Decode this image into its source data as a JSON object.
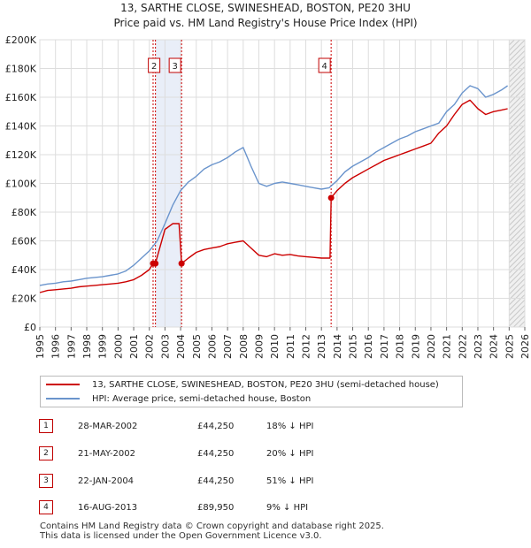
{
  "title_line1": "13, SARTHE CLOSE, SWINESHEAD, BOSTON, PE20 3HU",
  "title_line2": "Price paid vs. HM Land Registry's House Price Index (HPI)",
  "colors": {
    "price": "#cc0000",
    "hpi": "#6a94cc",
    "shade": "#e9eef8",
    "marker_border": "#c00000"
  },
  "chart_data": {
    "type": "line",
    "xlim": [
      1995,
      2026
    ],
    "ylim": [
      0,
      200000
    ],
    "y_ticks": [
      0,
      20000,
      40000,
      60000,
      80000,
      100000,
      120000,
      140000,
      160000,
      180000,
      200000
    ],
    "y_tick_labels": [
      "£0",
      "£20K",
      "£40K",
      "£60K",
      "£80K",
      "£100K",
      "£120K",
      "£140K",
      "£160K",
      "£180K",
      "£200K"
    ],
    "x_ticks": [
      "1995",
      "1996",
      "1997",
      "1998",
      "1999",
      "2000",
      "2001",
      "2002",
      "2003",
      "2004",
      "2005",
      "2006",
      "2007",
      "2008",
      "2009",
      "2010",
      "2011",
      "2012",
      "2013",
      "2014",
      "2015",
      "2016",
      "2017",
      "2018",
      "2019",
      "2020",
      "2021",
      "2022",
      "2023",
      "2024",
      "2025",
      "2026"
    ],
    "shaded_ranges": [
      [
        2002.39,
        2004.06
      ],
      [
        2025.0,
        2026.0
      ]
    ],
    "series": [
      {
        "name": "13, SARTHE CLOSE, SWINESHEAD, BOSTON, PE20 3HU (semi-detached house)",
        "x": [
          1995.0,
          1995.5,
          1996.0,
          1996.5,
          1997.0,
          1997.5,
          1998.0,
          1998.5,
          1999.0,
          1999.5,
          2000.0,
          2000.5,
          2001.0,
          2001.5,
          2002.0,
          2002.24,
          2002.39,
          2003.0,
          2003.5,
          2003.9,
          2004.06,
          2004.5,
          2005.0,
          2005.5,
          2006.0,
          2006.5,
          2007.0,
          2007.5,
          2008.0,
          2008.5,
          2009.0,
          2009.5,
          2010.0,
          2010.5,
          2011.0,
          2011.5,
          2012.0,
          2012.5,
          2013.0,
          2013.55,
          2013.62,
          2014.0,
          2014.5,
          2015.0,
          2015.5,
          2016.0,
          2016.5,
          2017.0,
          2017.5,
          2018.0,
          2018.5,
          2019.0,
          2019.5,
          2020.0,
          2020.5,
          2021.0,
          2021.5,
          2022.0,
          2022.5,
          2023.0,
          2023.5,
          2024.0,
          2024.5,
          2024.9
        ],
        "y": [
          24000,
          25500,
          26000,
          26500,
          27000,
          28000,
          28500,
          29000,
          29500,
          30000,
          30500,
          31500,
          33000,
          36000,
          40000,
          44250,
          44250,
          68000,
          72000,
          72000,
          44250,
          48000,
          52000,
          54000,
          55000,
          56000,
          58000,
          59000,
          60000,
          55000,
          50000,
          49000,
          51000,
          50000,
          50500,
          49500,
          49000,
          48500,
          48000,
          48000,
          89950,
          95000,
          100000,
          104000,
          107000,
          110000,
          113000,
          116000,
          118000,
          120000,
          122000,
          124000,
          126000,
          128000,
          135000,
          140000,
          148000,
          155000,
          158000,
          152000,
          148000,
          150000,
          151000,
          152000
        ]
      },
      {
        "name": "HPI: Average price, semi-detached house, Boston",
        "x": [
          1995.0,
          1995.5,
          1996.0,
          1996.5,
          1997.0,
          1997.5,
          1998.0,
          1998.5,
          1999.0,
          1999.5,
          2000.0,
          2000.5,
          2001.0,
          2001.5,
          2002.0,
          2002.5,
          2003.0,
          2003.5,
          2004.0,
          2004.5,
          2005.0,
          2005.5,
          2006.0,
          2006.5,
          2007.0,
          2007.5,
          2008.0,
          2008.5,
          2009.0,
          2009.5,
          2010.0,
          2010.5,
          2011.0,
          2011.5,
          2012.0,
          2012.5,
          2013.0,
          2013.5,
          2014.0,
          2014.5,
          2015.0,
          2015.5,
          2016.0,
          2016.5,
          2017.0,
          2017.5,
          2018.0,
          2018.5,
          2019.0,
          2019.5,
          2020.0,
          2020.5,
          2021.0,
          2021.5,
          2022.0,
          2022.5,
          2023.0,
          2023.5,
          2024.0,
          2024.5,
          2024.9
        ],
        "y": [
          29000,
          30000,
          30500,
          31500,
          32000,
          33000,
          34000,
          34500,
          35000,
          36000,
          37000,
          39000,
          43000,
          48000,
          53000,
          60000,
          72000,
          85000,
          95000,
          101000,
          105000,
          110000,
          113000,
          115000,
          118000,
          122000,
          125000,
          112000,
          100000,
          98000,
          100000,
          101000,
          100000,
          99000,
          98000,
          97000,
          96000,
          97000,
          102000,
          108000,
          112000,
          115000,
          118000,
          122000,
          125000,
          128000,
          131000,
          133000,
          136000,
          138000,
          140000,
          142000,
          150000,
          155000,
          163000,
          168000,
          166000,
          160000,
          162000,
          165000,
          168000
        ]
      }
    ],
    "sales": [
      {
        "label": "1",
        "x": 2002.24,
        "y": 44250
      },
      {
        "label": "2",
        "x": 2002.39,
        "y": 44250
      },
      {
        "label": "3",
        "x": 2004.06,
        "y": 44250
      },
      {
        "label": "4",
        "x": 2013.62,
        "y": 89950
      }
    ]
  },
  "legend": {
    "price_label": "13, SARTHE CLOSE, SWINESHEAD, BOSTON, PE20 3HU (semi-detached house)",
    "hpi_label": "HPI: Average price, semi-detached house, Boston"
  },
  "transactions": [
    {
      "num": "1",
      "date": "28-MAR-2002",
      "price": "£44,250",
      "hpi": "18% ↓ HPI"
    },
    {
      "num": "2",
      "date": "21-MAY-2002",
      "price": "£44,250",
      "hpi": "20% ↓ HPI"
    },
    {
      "num": "3",
      "date": "22-JAN-2004",
      "price": "£44,250",
      "hpi": "51% ↓ HPI"
    },
    {
      "num": "4",
      "date": "16-AUG-2013",
      "price": "£89,950",
      "hpi": "9% ↓ HPI"
    }
  ],
  "footer_line1": "Contains HM Land Registry data © Crown copyright and database right 2025.",
  "footer_line2": "This data is licensed under the Open Government Licence v3.0."
}
